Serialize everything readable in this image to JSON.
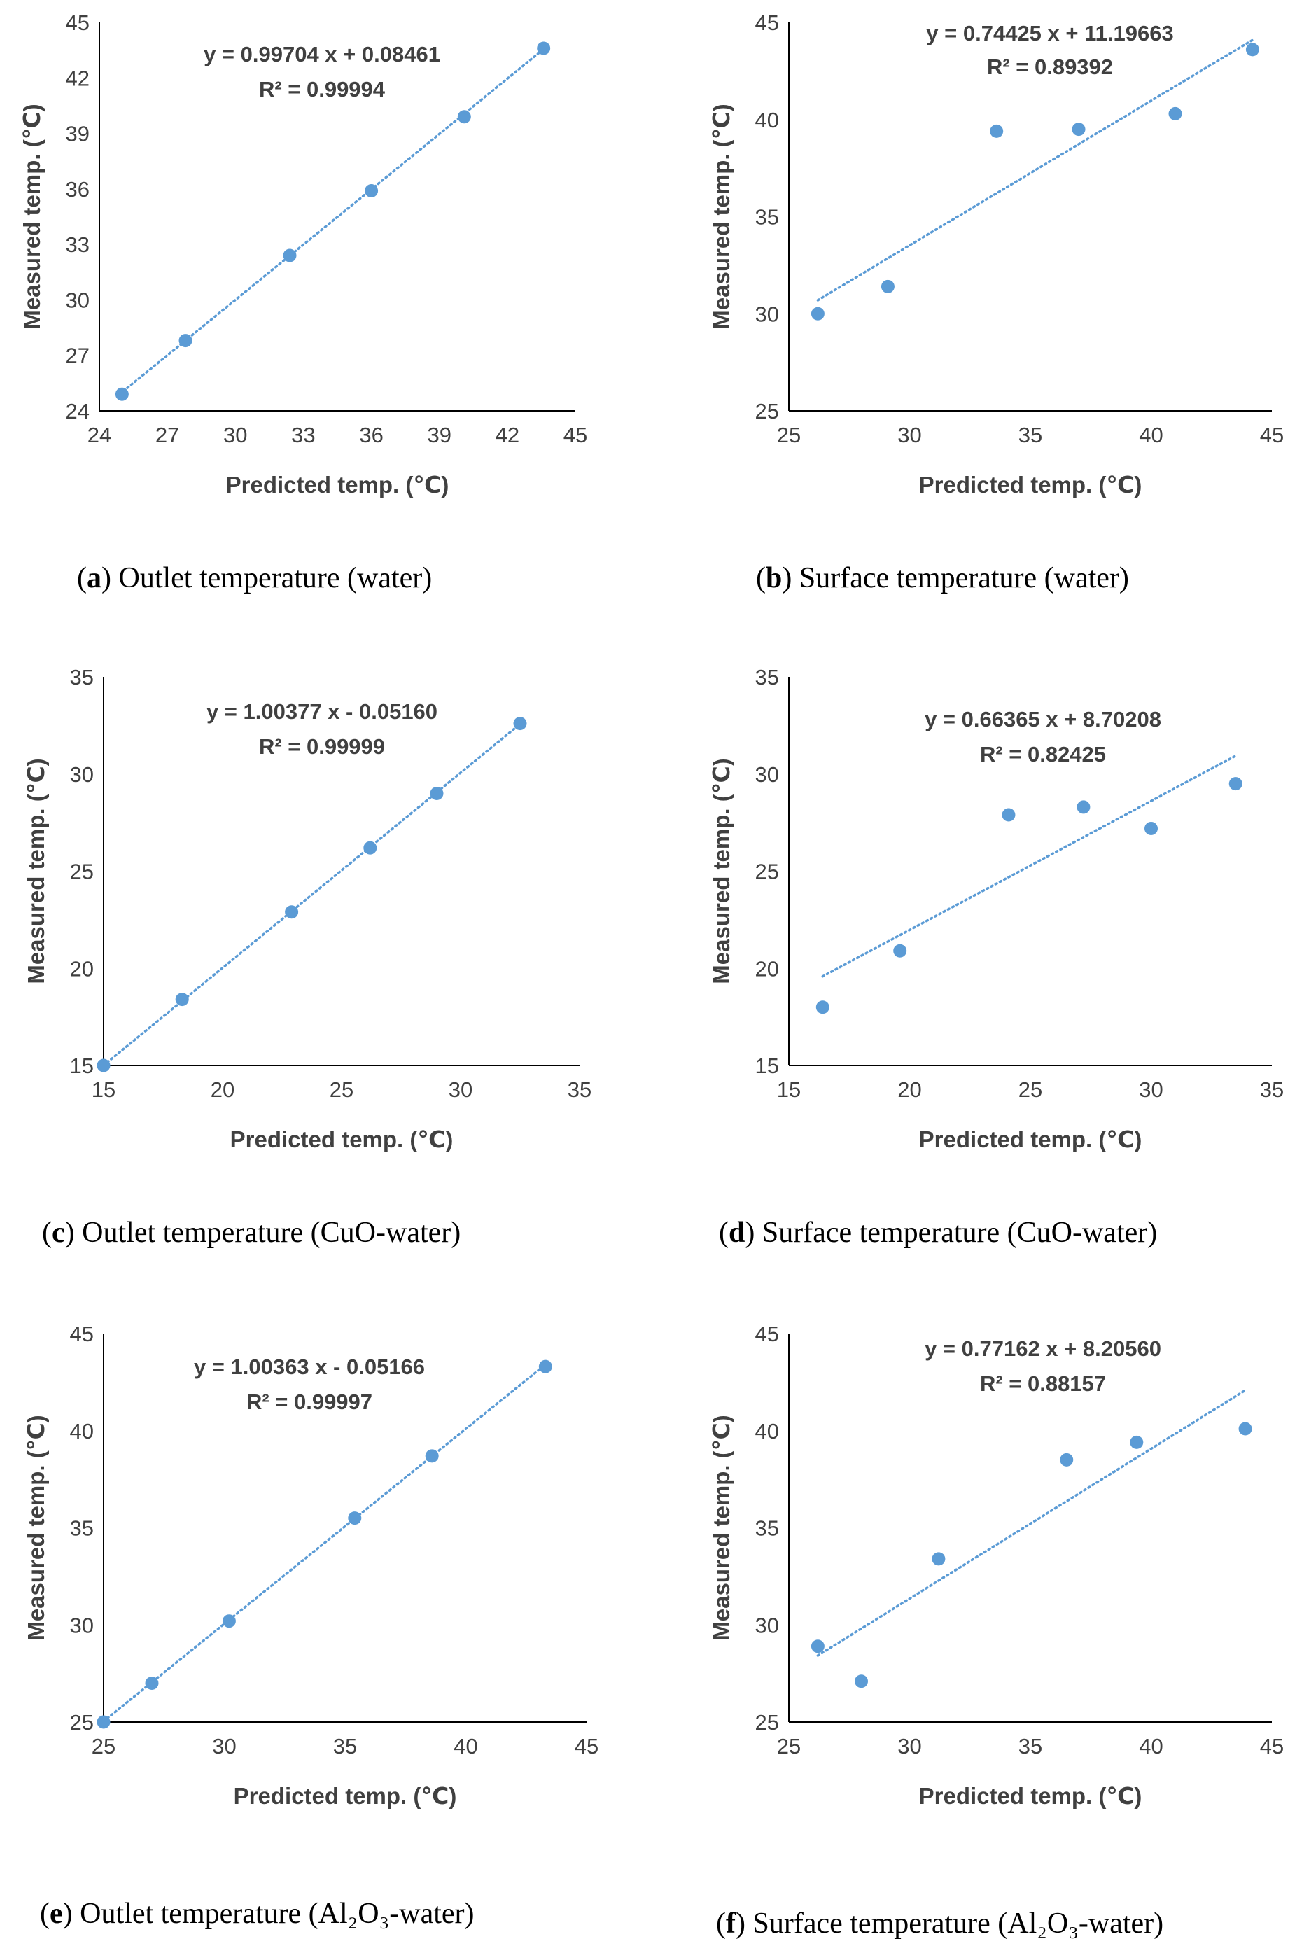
{
  "accent_color": "#5B9BD5",
  "axis_color": "#000000",
  "chart_data": [
    {
      "type": "scatter",
      "caption_letter": "a",
      "caption_text": "Outlet temperature (water)",
      "xlabel": "Predicted temp. (℃)",
      "ylabel": "Measured temp. (℃)",
      "xlim": [
        24,
        45
      ],
      "ylim": [
        24,
        45
      ],
      "xticks": [
        24,
        27,
        30,
        33,
        36,
        39,
        42,
        45
      ],
      "yticks": [
        24,
        27,
        30,
        33,
        36,
        39,
        42,
        45
      ],
      "x": [
        25.0,
        27.8,
        32.4,
        36.0,
        40.1,
        43.6
      ],
      "y": [
        24.9,
        27.8,
        32.4,
        35.9,
        39.9,
        43.6
      ],
      "trend": {
        "slope": 0.99704,
        "intercept": 0.08461,
        "x0": 24.9,
        "x1": 43.6
      },
      "equation": "y = 0.99704  x + 0.08461",
      "r2": "R² = 0.99994"
    },
    {
      "type": "scatter",
      "caption_letter": "b",
      "caption_text": "Surface temperature (water)",
      "xlabel": "Predicted temp. (℃)",
      "ylabel": "Measured temp. (℃)",
      "xlim": [
        25,
        45
      ],
      "ylim": [
        25,
        45
      ],
      "xticks": [
        25,
        30,
        35,
        40,
        45
      ],
      "yticks": [
        25,
        30,
        35,
        40,
        45
      ],
      "x": [
        26.2,
        29.1,
        33.6,
        37.0,
        41.0,
        44.2
      ],
      "y": [
        30.0,
        31.4,
        39.4,
        39.5,
        40.3,
        43.6
      ],
      "trend": {
        "slope": 0.74425,
        "intercept": 11.19663,
        "x0": 26.2,
        "x1": 44.2
      },
      "equation": "y = 0.74425  x + 11.19663",
      "r2": "R² = 0.89392"
    },
    {
      "type": "scatter",
      "caption_letter": "c",
      "caption_text": "Outlet temperature (CuO-water)",
      "xlabel": "Predicted temp. (℃)",
      "ylabel": "Measured temp. (℃)",
      "xlim": [
        15,
        35
      ],
      "ylim": [
        15,
        35
      ],
      "xticks": [
        15,
        20,
        25,
        30,
        35
      ],
      "yticks": [
        15,
        20,
        25,
        30,
        35
      ],
      "x": [
        15.0,
        18.3,
        22.9,
        26.2,
        29.0,
        32.5
      ],
      "y": [
        15.0,
        18.4,
        22.9,
        26.2,
        29.0,
        32.6
      ],
      "trend": {
        "slope": 1.00377,
        "intercept": -0.0516,
        "x0": 15.0,
        "x1": 32.5
      },
      "equation": "y = 1.00377  x - 0.05160",
      "r2": "R² = 0.99999"
    },
    {
      "type": "scatter",
      "caption_letter": "d",
      "caption_text": "Surface temperature (CuO-water)",
      "xlabel": "Predicted temp. (℃)",
      "ylabel": "Measured temp. (℃)",
      "xlim": [
        15,
        35
      ],
      "ylim": [
        15,
        35
      ],
      "xticks": [
        15,
        20,
        25,
        30,
        35
      ],
      "yticks": [
        15,
        20,
        25,
        30,
        35
      ],
      "x": [
        16.4,
        19.6,
        24.1,
        27.2,
        30.0,
        33.5
      ],
      "y": [
        18.0,
        20.9,
        27.9,
        28.3,
        27.2,
        29.5
      ],
      "trend": {
        "slope": 0.66365,
        "intercept": 8.70208,
        "x0": 16.4,
        "x1": 33.5
      },
      "equation": "y = 0.66365  x + 8.70208",
      "r2": "R² = 0.82425"
    },
    {
      "type": "scatter",
      "caption_letter": "e",
      "caption_text": "Outlet temperature (Al₂O₃-water)",
      "xlabel": "Predicted temp. (℃)",
      "ylabel": "Measured temp. (℃)",
      "xlim": [
        25,
        45
      ],
      "ylim": [
        25,
        45
      ],
      "xticks": [
        25,
        30,
        35,
        40,
        45
      ],
      "yticks": [
        25,
        30,
        35,
        40,
        45
      ],
      "x": [
        25.0,
        27.0,
        30.2,
        35.4,
        38.6,
        43.3
      ],
      "y": [
        25.0,
        27.0,
        30.2,
        35.5,
        38.7,
        43.3
      ],
      "trend": {
        "slope": 1.00363,
        "intercept": -0.05166,
        "x0": 25.0,
        "x1": 43.3
      },
      "equation": "y = 1.00363  x - 0.05166",
      "r2": "R² = 0.99997"
    },
    {
      "type": "scatter",
      "caption_letter": "f",
      "caption_text": "Surface temperature (Al₂O₃-water)",
      "xlabel": "Predicted temp. (℃)",
      "ylabel": "Measured temp. (℃)",
      "xlim": [
        25,
        45
      ],
      "ylim": [
        25,
        45
      ],
      "xticks": [
        25,
        30,
        35,
        40,
        45
      ],
      "yticks": [
        25,
        30,
        35,
        40,
        45
      ],
      "x": [
        26.2,
        28.0,
        31.2,
        36.5,
        39.4,
        43.9
      ],
      "y": [
        28.9,
        27.1,
        33.4,
        38.5,
        39.4,
        40.1
      ],
      "trend": {
        "slope": 0.77162,
        "intercept": 8.2056,
        "x0": 26.2,
        "x1": 43.9
      },
      "equation": "y = 0.77162  x + 8.20560",
      "r2": "R² = 0.88157"
    }
  ]
}
